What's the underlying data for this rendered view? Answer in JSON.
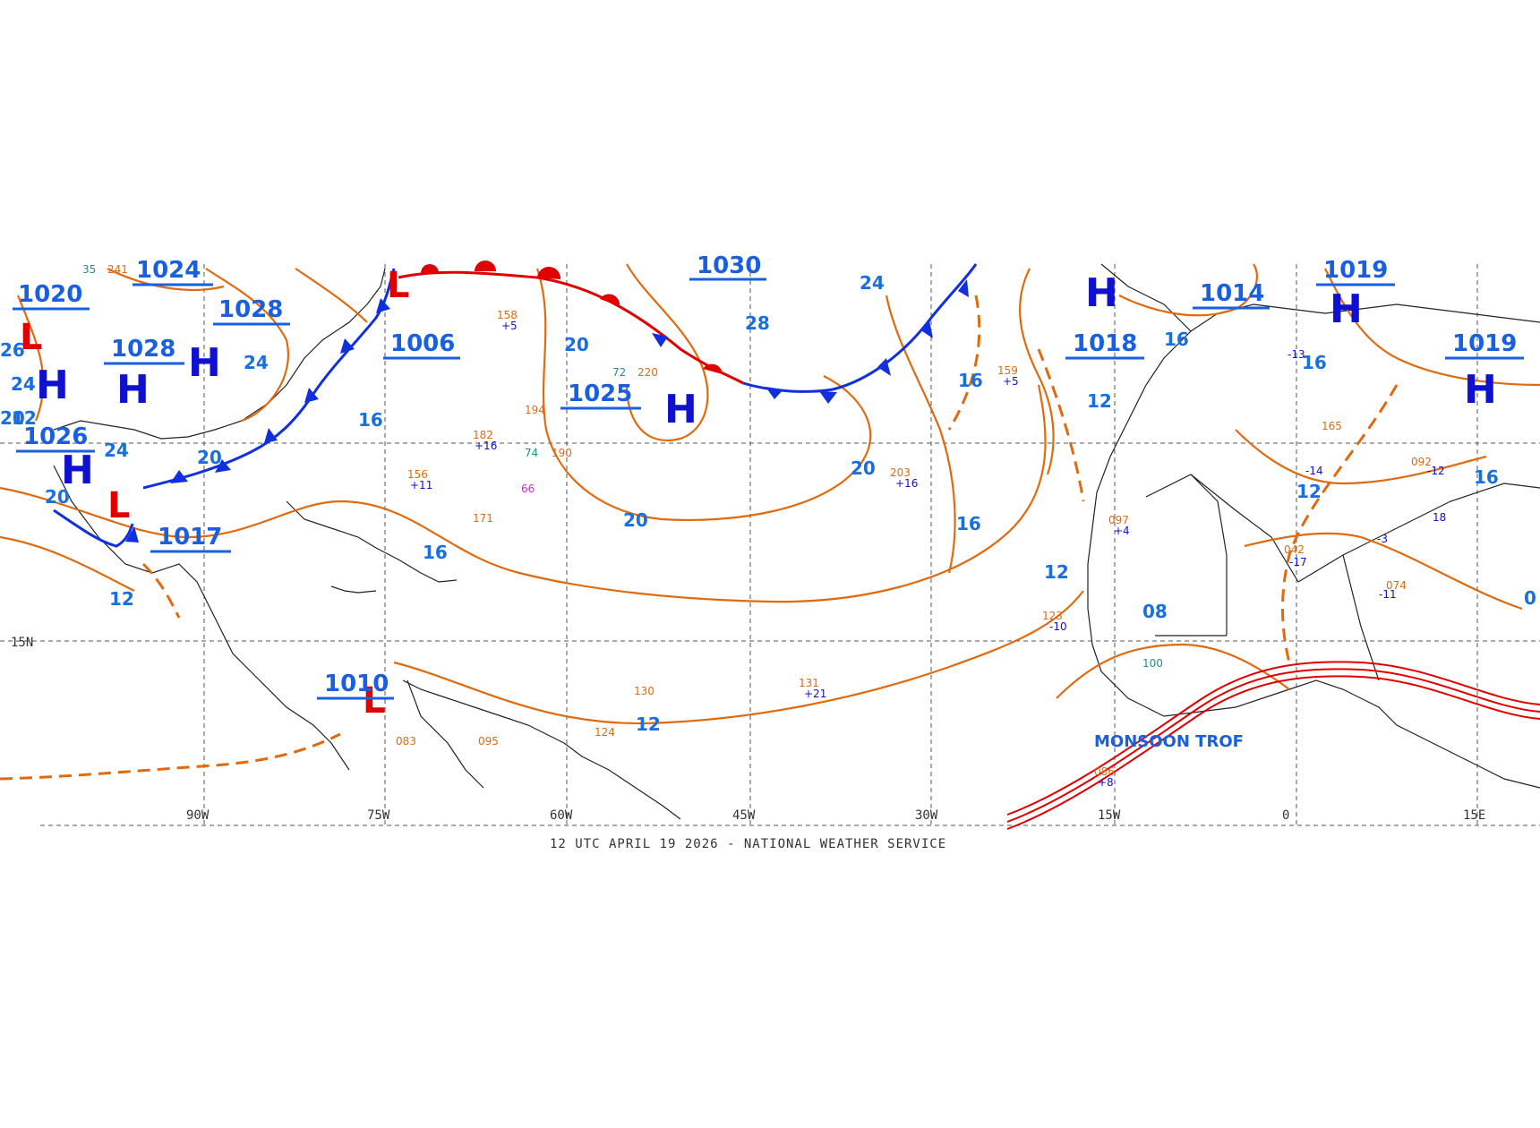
{
  "footer": "12 UTC APRIL 19 2026 - NATIONAL WEATHER SERVICE",
  "colors": {
    "isobar": "#e06a10",
    "cold_front": "#1030e0",
    "warm_front": "#e00000",
    "label": "#1a5fe0"
  },
  "axis": {
    "longitudes": [
      "90W",
      "75W",
      "60W",
      "45W",
      "30W",
      "15W",
      "0",
      "15E"
    ],
    "latitudes": [
      "15N"
    ]
  },
  "pressure_centers": [
    {
      "value": "1024"
    },
    {
      "value": "1020"
    },
    {
      "value": "1028"
    },
    {
      "value": "1028"
    },
    {
      "value": "1006"
    },
    {
      "value": "1026"
    },
    {
      "value": "1017"
    },
    {
      "value": "1025"
    },
    {
      "value": "1010"
    },
    {
      "value": "1018"
    },
    {
      "value": "1014"
    },
    {
      "value": "1019"
    },
    {
      "value": "1019"
    },
    {
      "value": "1030"
    }
  ],
  "isobar_labels": [
    "20",
    "24",
    "28",
    "20",
    "16",
    "12",
    "16",
    "20",
    "24",
    "24",
    "20",
    "16",
    "12",
    "12",
    "16",
    "16",
    "12",
    "12",
    "08",
    "16",
    "16",
    "20",
    "12",
    "0",
    "26",
    "24",
    "20"
  ],
  "monsoon_label": "MONSOON TROF",
  "high_symbol": "H",
  "low_symbol": "L",
  "station_samples": [
    "241",
    "35",
    "158",
    "+5",
    "171",
    "190",
    "74",
    "156",
    "+11",
    "182",
    "+16",
    "220",
    "72",
    "194",
    "66",
    "131",
    "+21",
    "203",
    "+16",
    "159",
    "+5",
    "123",
    "-10",
    "097",
    "+4",
    "100",
    "086",
    "+8",
    "074",
    "165",
    "092",
    "-12",
    "042",
    "-17",
    "130",
    "124",
    "095",
    "083",
    "-14",
    "-13",
    "-3",
    "-11",
    "18"
  ]
}
